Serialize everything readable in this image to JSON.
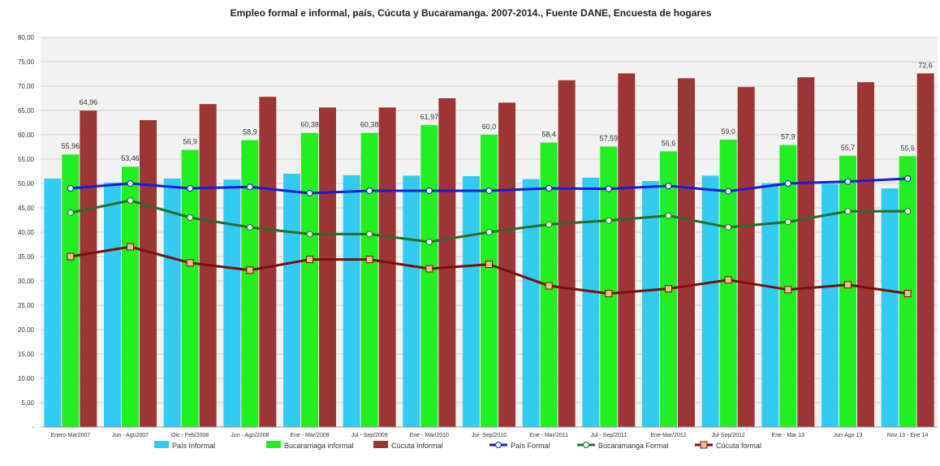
{
  "chart_data": {
    "type": "bar",
    "title": "Empleo formal e informal, país, Cúcuta y Bucaramanga. 2007-2014., Fuente DANE, Encuesta de hogares",
    "xlabel": "",
    "ylabel": "",
    "ylim": [
      0,
      80
    ],
    "yticks": [
      "-",
      "5,00",
      "10,00",
      "15,00",
      "20,00",
      "25,00",
      "30,00",
      "35,00",
      "40,00",
      "45,00",
      "50,00",
      "55,00",
      "60,00",
      "65,00",
      "70,00",
      "75,00",
      "80,00"
    ],
    "grid": true,
    "legend_position": "bottom",
    "categories": [
      "Enero-Mar2007",
      "Jun - Ago2007",
      "Oic - Feb/2008",
      "Jun - Ago/2008",
      "Ene - Mar/2009",
      "Jul - Sep/2009",
      "Ene - Mar/2010",
      "Jul- Sep/2010",
      "Ene - Mar/2011",
      "Jul - Sep/2011",
      "Ene-Mar/2012",
      "Jul-Sep/2012",
      "Ene - Mar 13",
      "Jun-Ago 13",
      "Nov 13 - Ene 14"
    ],
    "series": [
      {
        "name": "País Informal",
        "kind": "bar",
        "color": "#33ccf0",
        "values": [
          51.0,
          50.2,
          51.0,
          50.8,
          52.0,
          51.7,
          51.6,
          51.5,
          50.9,
          51.2,
          50.5,
          51.6,
          50.1,
          49.9,
          49.0
        ]
      },
      {
        "name": "Bucaramaga informal",
        "kind": "bar",
        "color": "#22ee22",
        "values": [
          55.96,
          53.46,
          56.9,
          58.9,
          60.38,
          60.38,
          61.97,
          60.0,
          58.4,
          57.59,
          56.6,
          59.0,
          57.9,
          55.7,
          55.6
        ],
        "labels": [
          "55,96",
          "53,46",
          "56,9",
          "58,9",
          "60,38",
          "60,38",
          "61,97",
          "60,0",
          "58,4",
          "57,59",
          "56,6",
          "59,0",
          "57,9",
          "55,7",
          "55,6"
        ]
      },
      {
        "name": "Cúcuta Informal",
        "kind": "bar",
        "color": "#9c3636",
        "values": [
          64.96,
          63.0,
          66.3,
          67.8,
          65.6,
          65.6,
          67.5,
          66.6,
          71.2,
          72.6,
          71.6,
          69.8,
          71.8,
          70.8,
          72.6
        ],
        "labels": [
          "64,96",
          "",
          "",
          "",
          "",
          "",
          "",
          "",
          "",
          "",
          "",
          "",
          "",
          "",
          "72,6"
        ]
      },
      {
        "name": "País Formal",
        "kind": "line",
        "color": "#1a1adc",
        "values": [
          49.0,
          50.0,
          49.0,
          49.3,
          48.0,
          48.5,
          48.5,
          48.5,
          49.0,
          48.9,
          49.5,
          48.4,
          50.0,
          50.4,
          51.0
        ]
      },
      {
        "name": "Bucaramanga Formal",
        "kind": "line",
        "color": "#2d6a2d",
        "values": [
          44.0,
          46.5,
          43.0,
          41.0,
          39.6,
          39.6,
          38.0,
          40.0,
          41.6,
          42.4,
          43.4,
          41.0,
          42.1,
          44.3,
          44.3
        ]
      },
      {
        "name": "Cúcuta formal",
        "kind": "line",
        "color": "#7a0f0f",
        "values": [
          35.0,
          37.0,
          33.7,
          32.2,
          34.4,
          34.4,
          32.5,
          33.4,
          29.0,
          27.4,
          28.4,
          30.2,
          28.2,
          29.2,
          27.4
        ]
      }
    ]
  }
}
